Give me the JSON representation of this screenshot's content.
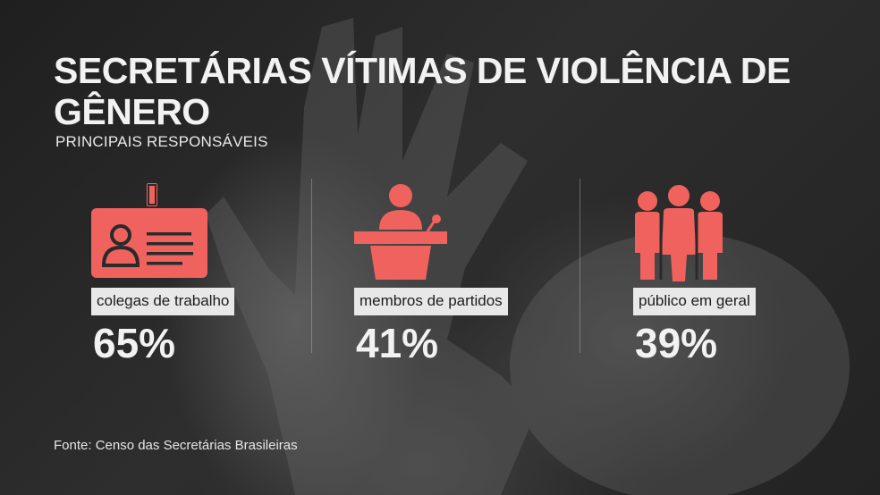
{
  "title": "SECRETÁRIAS VÍTIMAS DE VIOLÊNCIA DE GÊNERO",
  "subtitle": "PRINCIPAIS RESPONSÁVEIS",
  "accent_color": "#f0625d",
  "items": [
    {
      "icon": "id-badge-icon",
      "label": "colegas de trabalho",
      "value": "65%"
    },
    {
      "icon": "speaker-podium-icon",
      "label": "membros de partidos",
      "value": "41%"
    },
    {
      "icon": "group-of-people-icon",
      "label": "público em geral",
      "value": "39%"
    }
  ],
  "source": "Fonte: Censo das Secretárias Brasileiras"
}
